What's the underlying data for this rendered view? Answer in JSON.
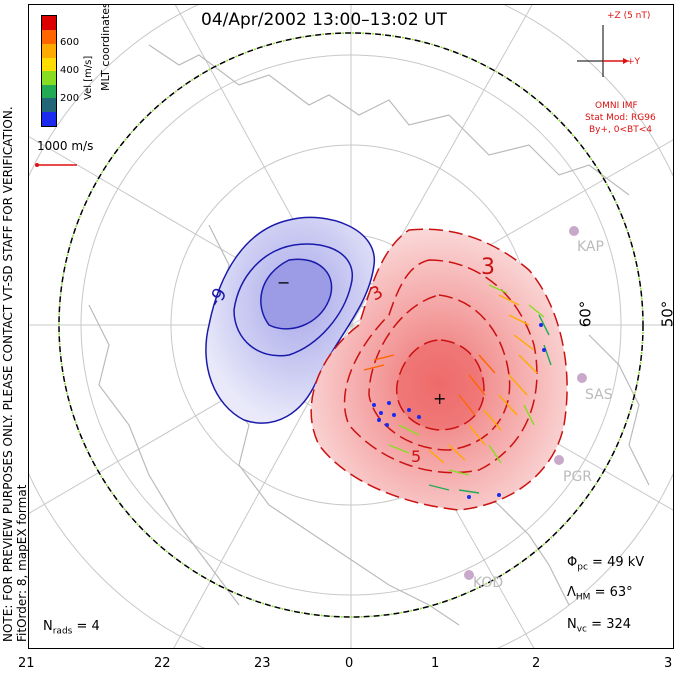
{
  "title": "04/Apr/2002 13:00–13:02 UT",
  "imf": {
    "scale_label": "+Z (5 nT)",
    "y_label": "+Y",
    "source": "OMNI IMF",
    "model": "Stat Mod: RG96",
    "condition": "By+,  0<BT<4",
    "color": "#dd1111"
  },
  "colorbar": {
    "title": "Vel [m/s]",
    "ticks": [
      "600",
      "400",
      "200"
    ],
    "colors": [
      "#dd0000",
      "#ff6600",
      "#ffaa00",
      "#ffdd00",
      "#88dd22",
      "#22aa55",
      "#226677",
      "#1a2aee"
    ]
  },
  "coordinates_label": "MLT coordinates",
  "vector_scale": "1000 m/s",
  "side_note": "NOTE: FOR PREVIEW PURPOSES ONLY. PLEASE CONTACT VT-SD STAFF FOR VERIFICATION.",
  "fit_order": "FitOrder: 8, mapEX format",
  "contour_labels": {
    "negative": "-9",
    "negative_min": "−",
    "positive": "3",
    "positive_peak": "+",
    "positive_near": "5"
  },
  "latitudes": [
    "60°",
    "50°"
  ],
  "radars": [
    "KAP",
    "SAS",
    "PGR",
    "KOD"
  ],
  "stats": {
    "phi_pc": "49 kV",
    "lambda_hm": "63°",
    "n_vc": "324",
    "n_rads": "4"
  },
  "mlt_ticks": [
    "21",
    "22",
    "23",
    "0",
    "1",
    "2",
    "3"
  ],
  "colors": {
    "positive": "#cc1111",
    "negative": "#1a1aaa",
    "boundary_dash": "#88dd22"
  }
}
